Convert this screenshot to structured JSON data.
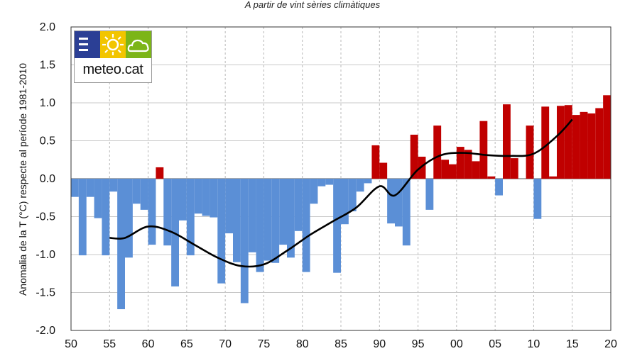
{
  "header": {
    "subtitle": "A partir de vint sèries climàtiques"
  },
  "logo": {
    "text": "meteo.cat",
    "icons": [
      "menu-lines-icon",
      "sun-icon",
      "cloud-icon"
    ],
    "colors": {
      "blue": "#2b3f95",
      "yellow": "#f2c500",
      "green": "#7cb518"
    }
  },
  "chart_data": {
    "type": "bar",
    "ylabel": "Anomalia de la T (°C) respecte al període 1981-2010",
    "ylim": [
      -2.0,
      2.0
    ],
    "yticks": [
      "2.0",
      "1.5",
      "1.0",
      "0.5",
      "0.0",
      "-0.5",
      "-1.0",
      "-1.5",
      "-2.0"
    ],
    "xlim": [
      1950,
      2020
    ],
    "xticks": [
      "50",
      "55",
      "60",
      "65",
      "70",
      "75",
      "80",
      "85",
      "90",
      "95",
      "00",
      "05",
      "10",
      "15",
      "20"
    ],
    "grid": true,
    "colors": {
      "negative": "#5b8fd6",
      "positive": "#c00000",
      "trend": "#000000"
    },
    "years": [
      1950,
      1951,
      1952,
      1953,
      1954,
      1955,
      1956,
      1957,
      1958,
      1959,
      1960,
      1961,
      1962,
      1963,
      1964,
      1965,
      1966,
      1967,
      1968,
      1969,
      1970,
      1971,
      1972,
      1973,
      1974,
      1975,
      1976,
      1977,
      1978,
      1979,
      1980,
      1981,
      1982,
      1983,
      1984,
      1985,
      1986,
      1987,
      1988,
      1989,
      1990,
      1991,
      1992,
      1993,
      1994,
      1995,
      1996,
      1997,
      1998,
      1999,
      2000,
      2001,
      2002,
      2003,
      2004,
      2005,
      2006,
      2007,
      2008,
      2009,
      2010,
      2011,
      2012,
      2013,
      2014,
      2015,
      2016,
      2017,
      2018,
      2019,
      2020
    ],
    "values": [
      -0.24,
      -1.01,
      -0.24,
      -0.52,
      -1.01,
      -0.17,
      -1.72,
      -1.04,
      -0.33,
      -0.41,
      -0.87,
      0.15,
      -0.88,
      -1.42,
      -0.55,
      -1.01,
      -0.46,
      -0.49,
      -0.51,
      -1.38,
      -0.72,
      -1.1,
      -1.64,
      -0.97,
      -1.23,
      -1.08,
      -1.11,
      -0.87,
      -1.04,
      -0.69,
      -1.23,
      -0.33,
      -0.1,
      -0.08,
      -1.24,
      -0.6,
      -0.43,
      -0.17,
      -0.06,
      0.44,
      0.21,
      -0.59,
      -0.63,
      -0.88,
      0.58,
      0.29,
      -0.41,
      0.7,
      0.25,
      0.19,
      0.42,
      0.38,
      0.23,
      0.76,
      0.03,
      -0.22,
      0.98,
      0.27,
      0.0,
      0.7,
      -0.53,
      0.95,
      0.03,
      0.96,
      0.97,
      0.84,
      0.88,
      0.86,
      0.93,
      1.1,
      0.0
    ],
    "trend": {
      "name": "",
      "x": [
        1955,
        1957,
        1960,
        1963,
        1966,
        1969,
        1972,
        1975,
        1978,
        1981,
        1984,
        1987,
        1990,
        1992,
        1995,
        1998,
        2001,
        2004,
        2007,
        2010,
        2013,
        2015
      ],
      "y": [
        -0.78,
        -0.78,
        -0.63,
        -0.7,
        -0.87,
        -1.04,
        -1.15,
        -1.13,
        -0.95,
        -0.74,
        -0.56,
        -0.38,
        -0.1,
        -0.22,
        0.12,
        0.31,
        0.34,
        0.31,
        0.3,
        0.33,
        0.56,
        0.78
      ]
    }
  }
}
